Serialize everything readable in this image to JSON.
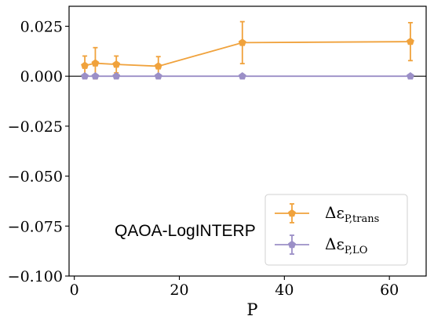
{
  "chart_data": {
    "type": "line",
    "xlabel": "P",
    "ylabel": "",
    "xlim": [
      -1,
      67
    ],
    "ylim": [
      -0.1,
      0.035
    ],
    "xticks": [
      0,
      20,
      40,
      60
    ],
    "yticks": [
      0.025,
      0.0,
      -0.025,
      -0.05,
      -0.075,
      -0.1
    ],
    "ytick_labels": [
      "0.025",
      "0.000",
      "−0.025",
      "−0.050",
      "−0.075",
      "−0.100"
    ],
    "xtick_labels": [
      "0",
      "20",
      "40",
      "60"
    ],
    "grid": false,
    "zero_line": true,
    "legend_position": "lower-right",
    "annotation": "QAOA-LogINTERP",
    "series": [
      {
        "name": "ΔεP,trans",
        "name_main": "Δε",
        "name_sub": "P,trans",
        "color": "#f0a23c",
        "marker": "pentagon",
        "x": [
          2,
          4,
          8,
          16,
          32,
          64
        ],
        "y": [
          0.0053,
          0.0065,
          0.0059,
          0.005,
          0.0168,
          0.0173
        ],
        "yerr": [
          0.0048,
          0.0078,
          0.0042,
          0.0048,
          0.0105,
          0.0095
        ]
      },
      {
        "name": "ΔεP,LO",
        "name_main": "Δε",
        "name_sub": "P,LO",
        "color": "#9b8fc7",
        "marker": "pentagon",
        "x": [
          2,
          4,
          8,
          16,
          32,
          64
        ],
        "y": [
          0.0,
          0.0,
          0.0,
          0.0,
          0.0,
          0.0
        ],
        "yerr": [
          0.0,
          0.0,
          0.0,
          0.0,
          0.0,
          0.0
        ]
      }
    ]
  }
}
